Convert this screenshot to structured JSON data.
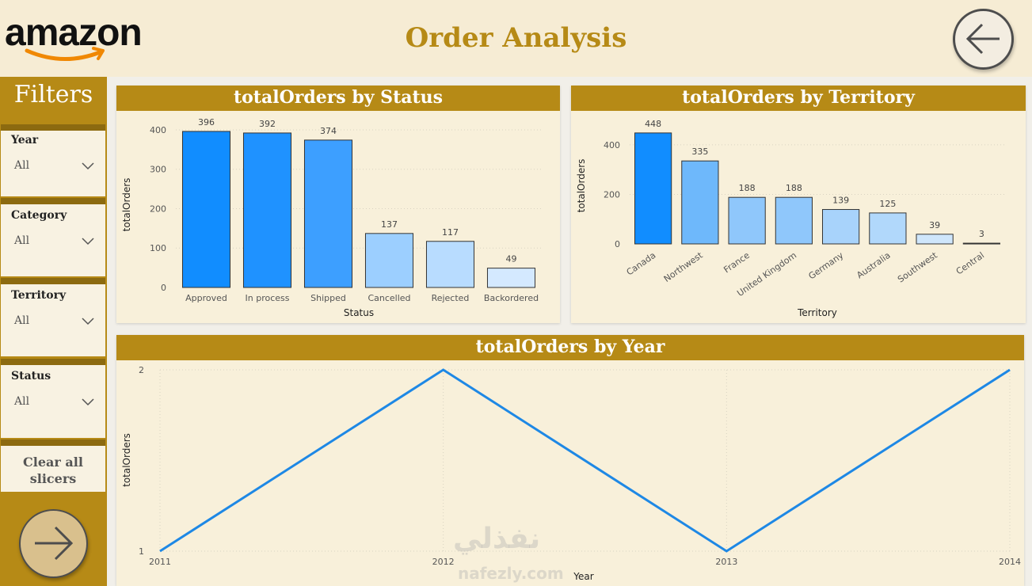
{
  "header": {
    "logo_text": "amazon",
    "title": "Order Analysis",
    "back_icon": "arrow-left-icon"
  },
  "sidebar": {
    "title": "Filters",
    "slicers": [
      {
        "label": "Year",
        "value": "All"
      },
      {
        "label": "Category",
        "value": "All"
      },
      {
        "label": "Territory",
        "value": "All"
      },
      {
        "label": "Status",
        "value": "All"
      }
    ],
    "clear_label_line1": "Clear all",
    "clear_label_line2": "slicers",
    "next_icon": "arrow-right-icon"
  },
  "watermark": {
    "line1": "نفذلي",
    "line2": "nafezly.com"
  },
  "colors": {
    "gold": "#b68a16",
    "cream": "#f8f0da",
    "bar_dark": "#118dff",
    "line": "#1e88e5"
  },
  "chart_data": [
    {
      "type": "bar",
      "title": "totalOrders by Status",
      "xlabel": "Status",
      "ylabel": "totalOrders",
      "categories": [
        "Approved",
        "In process",
        "Shipped",
        "Cancelled",
        "Rejected",
        "Backordered"
      ],
      "values": [
        396,
        392,
        374,
        137,
        117,
        49
      ],
      "colors": [
        "#118dff",
        "#1f92ff",
        "#3d9fff",
        "#9ccfff",
        "#b8dcff",
        "#d4e9ff"
      ],
      "yticks": [
        0,
        100,
        200,
        300,
        400
      ],
      "ylim": [
        0,
        420
      ]
    },
    {
      "type": "bar",
      "title": "totalOrders by Territory",
      "xlabel": "Territory",
      "ylabel": "totalOrders",
      "categories": [
        "Canada",
        "Northwest",
        "France",
        "United Kingdom",
        "Germany",
        "Australia",
        "Southwest",
        "Central"
      ],
      "values": [
        448,
        335,
        188,
        188,
        139,
        125,
        39,
        3
      ],
      "colors": [
        "#118dff",
        "#6eb8fb",
        "#8fc7fb",
        "#8fc7fb",
        "#a8d3fb",
        "#b1d8fb",
        "#cfe6fb",
        "#e0eefb"
      ],
      "yticks": [
        0,
        200,
        400
      ],
      "ylim": [
        0,
        470
      ]
    },
    {
      "type": "line",
      "title": "totalOrders by Year",
      "xlabel": "Year",
      "ylabel": "totalOrders",
      "x": [
        "2011",
        "2012",
        "2013",
        "2014"
      ],
      "values": [
        1,
        2,
        1,
        2
      ],
      "yticks": [
        1,
        2
      ],
      "ylim": [
        1,
        2
      ]
    }
  ]
}
